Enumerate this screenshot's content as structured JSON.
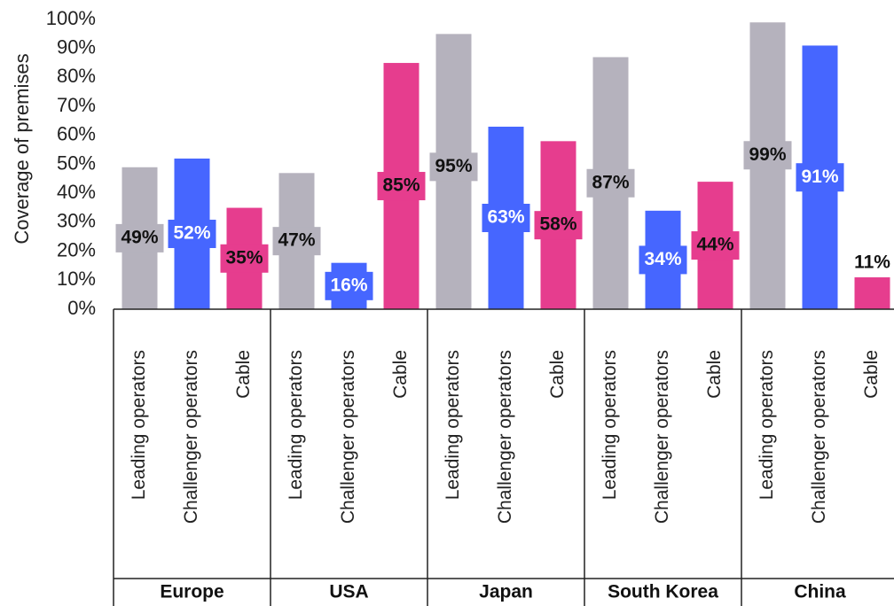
{
  "chart_data": {
    "type": "bar",
    "ylabel": "Coverage of premises",
    "ylim": [
      0,
      100
    ],
    "yticks": [
      "0%",
      "10%",
      "20%",
      "30%",
      "40%",
      "50%",
      "60%",
      "70%",
      "80%",
      "90%",
      "100%"
    ],
    "grid": false,
    "legend": "none",
    "colors": {
      "Leading operators": "#b5b2bd",
      "Challenger operators": "#4666ff",
      "Cable": "#e63d8e"
    },
    "groups": [
      {
        "name": "Europe",
        "bars": [
          {
            "category": "Leading operators",
            "value": 49,
            "label": "49%"
          },
          {
            "category": "Challenger operators",
            "value": 52,
            "label": "52%"
          },
          {
            "category": "Cable",
            "value": 35,
            "label": "35%"
          }
        ]
      },
      {
        "name": "USA",
        "bars": [
          {
            "category": "Leading operators",
            "value": 47,
            "label": "47%"
          },
          {
            "category": "Challenger operators",
            "value": 16,
            "label": "16%"
          },
          {
            "category": "Cable",
            "value": 85,
            "label": "85%"
          }
        ]
      },
      {
        "name": "Japan",
        "bars": [
          {
            "category": "Leading operators",
            "value": 95,
            "label": "95%"
          },
          {
            "category": "Challenger operators",
            "value": 63,
            "label": "63%"
          },
          {
            "category": "Cable",
            "value": 58,
            "label": "58%"
          }
        ]
      },
      {
        "name": "South Korea",
        "bars": [
          {
            "category": "Leading operators",
            "value": 87,
            "label": "87%"
          },
          {
            "category": "Challenger operators",
            "value": 34,
            "label": "34%"
          },
          {
            "category": "Cable",
            "value": 44,
            "label": "44%"
          }
        ]
      },
      {
        "name": "China",
        "bars": [
          {
            "category": "Leading operators",
            "value": 99,
            "label": "99%"
          },
          {
            "category": "Challenger operators",
            "value": 91,
            "label": "91%"
          },
          {
            "category": "Cable",
            "value": 11,
            "label": "11%"
          }
        ]
      }
    ]
  }
}
